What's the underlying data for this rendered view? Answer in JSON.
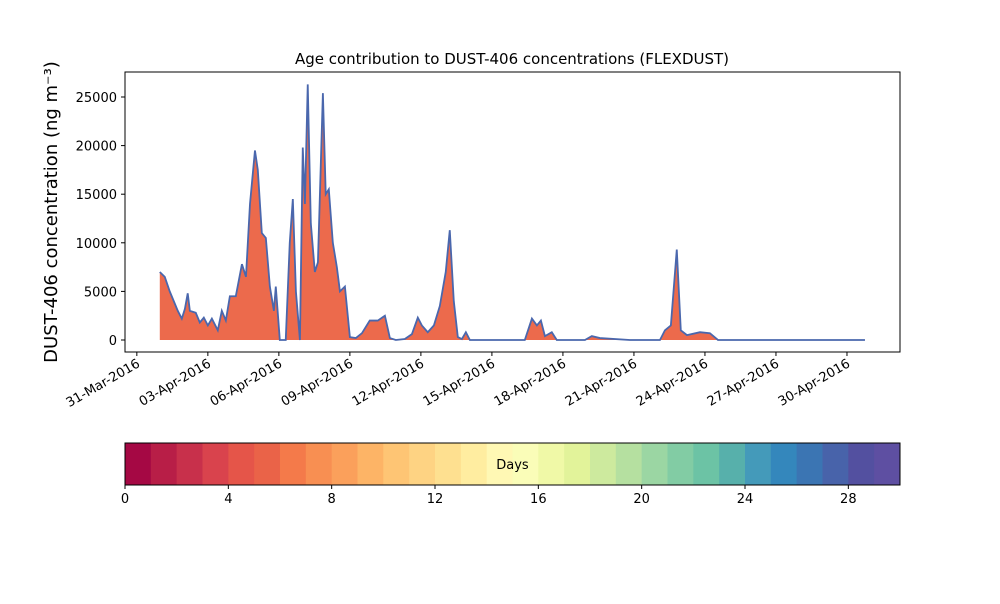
{
  "chart_data": {
    "type": "area",
    "title": "Age contribution to DUST-406 concentrations (FLEXDUST)",
    "y_label": "DUST-406 concentration (ng m⁻³)",
    "x": [
      0.97,
      1.18,
      1.39,
      1.73,
      1.9,
      2.03,
      2.15,
      2.24,
      2.49,
      2.66,
      2.83,
      3.0,
      3.17,
      3.42,
      3.59,
      3.76,
      3.93,
      4.18,
      4.44,
      4.61,
      4.78,
      4.99,
      5.11,
      5.28,
      5.45,
      5.62,
      5.79,
      5.87,
      6.04,
      6.29,
      6.46,
      6.59,
      6.72,
      6.89,
      7.01,
      7.1,
      7.22,
      7.35,
      7.52,
      7.65,
      7.86,
      7.98,
      8.11,
      8.28,
      8.45,
      8.58,
      8.79,
      9.0,
      9.25,
      9.51,
      9.84,
      10.18,
      10.48,
      10.69,
      10.94,
      11.32,
      11.62,
      11.87,
      12.04,
      12.29,
      12.55,
      12.8,
      13.05,
      13.22,
      13.39,
      13.56,
      13.73,
      13.9,
      14.07,
      15.34,
      16.39,
      16.69,
      16.9,
      17.07,
      17.24,
      17.53,
      17.74,
      18.93,
      19.22,
      19.56,
      20.83,
      22.1,
      22.31,
      22.56,
      22.81,
      22.98,
      23.24,
      23.79,
      24.21,
      24.55,
      30.76
    ],
    "series": [
      {
        "color": "#ec6a4c",
        "line_color": "#4a67ad",
        "values": [
          7000,
          6500,
          5000,
          3000,
          2200,
          3200,
          4800,
          3000,
          2800,
          1800,
          2300,
          1500,
          2200,
          1000,
          3000,
          2000,
          4500,
          4500,
          7800,
          6500,
          14000,
          19500,
          17500,
          11000,
          10500,
          5500,
          3000,
          5500,
          0,
          0,
          10000,
          14500,
          5000,
          0,
          19800,
          14000,
          26300,
          12000,
          7000,
          8000,
          25400,
          15000,
          15500,
          10000,
          7500,
          5000,
          5500,
          300,
          200,
          700,
          2000,
          2000,
          2500,
          200,
          0,
          100,
          600,
          2300,
          1500,
          800,
          1500,
          3500,
          7000,
          11300,
          4000,
          300,
          100,
          800,
          0,
          0,
          0,
          2200,
          1500,
          2000,
          400,
          800,
          0,
          0,
          400,
          200,
          0,
          0,
          1000,
          1500,
          9300,
          1000,
          500,
          800,
          700,
          0,
          0
        ]
      }
    ],
    "xlim": [
      -0.5,
      32.24
    ],
    "xticks": [
      {
        "value": 0,
        "label": "31-Mar-2016"
      },
      {
        "value": 3,
        "label": "03-Apr-2016"
      },
      {
        "value": 6,
        "label": "06-Apr-2016"
      },
      {
        "value": 9,
        "label": "09-Apr-2016"
      },
      {
        "value": 12,
        "label": "12-Apr-2016"
      },
      {
        "value": 15,
        "label": "15-Apr-2016"
      },
      {
        "value": 18,
        "label": "18-Apr-2016"
      },
      {
        "value": 21,
        "label": "21-Apr-2016"
      },
      {
        "value": 24,
        "label": "24-Apr-2016"
      },
      {
        "value": 27,
        "label": "27-Apr-2016"
      },
      {
        "value": 30,
        "label": "30-Apr-2016"
      }
    ],
    "ylim": [
      -1235,
      27572
    ],
    "yticks": [
      0,
      5000,
      10000,
      15000,
      20000,
      25000
    ],
    "colorbar": {
      "label": "Days",
      "lim": [
        0,
        30
      ],
      "ticks": [
        0,
        4,
        8,
        12,
        16,
        20,
        24,
        28
      ],
      "colors": [
        "#a50844",
        "#b81e47",
        "#c8304b",
        "#d9434d",
        "#e55549",
        "#ea6348",
        "#f47a4a",
        "#f88f52",
        "#fba05b",
        "#fdb466",
        "#fec574",
        "#fed383",
        "#fee090",
        "#ffeda0",
        "#fff8b4",
        "#fafdb8",
        "#f0f9a7",
        "#e2f39a",
        "#cdea9e",
        "#b5e0a0",
        "#9bd6a3",
        "#82cca4",
        "#6cc3a5",
        "#57b0ab",
        "#449aba",
        "#3487bc",
        "#3b75b3",
        "#4863aa",
        "#5350a0",
        "#5e4fa2"
      ]
    }
  }
}
